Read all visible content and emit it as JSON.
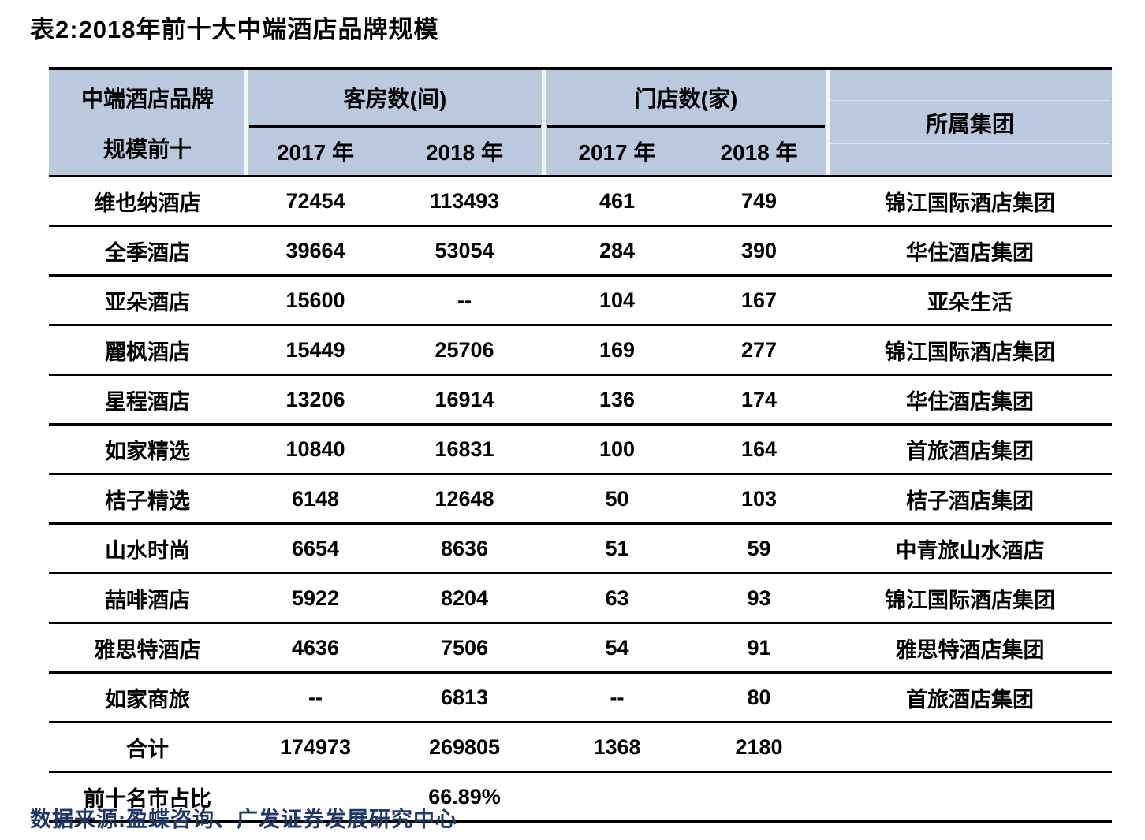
{
  "title": "表2:2018年前十大中端酒店品牌规模",
  "header": {
    "brand_line1": "中端酒店品牌",
    "brand_line2": "规模前十",
    "rooms_group": "客房数(间)",
    "stores_group": "门店数(家)",
    "rooms_2017": "2017 年",
    "rooms_2018": "2018 年",
    "stores_2017": "2017 年",
    "stores_2018": "2018 年",
    "group_col": "所属集团"
  },
  "rows": [
    {
      "brand": "维也纳酒店",
      "rooms_2017": "72454",
      "rooms_2018": "113493",
      "stores_2017": "461",
      "stores_2018": "749",
      "group": "锦江国际酒店集团"
    },
    {
      "brand": "全季酒店",
      "rooms_2017": "39664",
      "rooms_2018": "53054",
      "stores_2017": "284",
      "stores_2018": "390",
      "group": "华住酒店集团"
    },
    {
      "brand": "亚朵酒店",
      "rooms_2017": "15600",
      "rooms_2018": "--",
      "stores_2017": "104",
      "stores_2018": "167",
      "group": "亚朵生活"
    },
    {
      "brand": "麗枫酒店",
      "rooms_2017": "15449",
      "rooms_2018": "25706",
      "stores_2017": "169",
      "stores_2018": "277",
      "group": "锦江国际酒店集团"
    },
    {
      "brand": "星程酒店",
      "rooms_2017": "13206",
      "rooms_2018": "16914",
      "stores_2017": "136",
      "stores_2018": "174",
      "group": "华住酒店集团"
    },
    {
      "brand": "如家精选",
      "rooms_2017": "10840",
      "rooms_2018": "16831",
      "stores_2017": "100",
      "stores_2018": "164",
      "group": "首旅酒店集团"
    },
    {
      "brand": "桔子精选",
      "rooms_2017": "6148",
      "rooms_2018": "12648",
      "stores_2017": "50",
      "stores_2018": "103",
      "group": "桔子酒店集团"
    },
    {
      "brand": "山水时尚",
      "rooms_2017": "6654",
      "rooms_2018": "8636",
      "stores_2017": "51",
      "stores_2018": "59",
      "group": "中青旅山水酒店"
    },
    {
      "brand": "喆啡酒店",
      "rooms_2017": "5922",
      "rooms_2018": "8204",
      "stores_2017": "63",
      "stores_2018": "93",
      "group": "锦江国际酒店集团"
    },
    {
      "brand": "雅思特酒店",
      "rooms_2017": "4636",
      "rooms_2018": "7506",
      "stores_2017": "54",
      "stores_2018": "91",
      "group": "雅思特酒店集团"
    },
    {
      "brand": "如家商旅",
      "rooms_2017": "--",
      "rooms_2018": "6813",
      "stores_2017": "--",
      "stores_2018": "80",
      "group": "首旅酒店集团"
    }
  ],
  "total_row": {
    "brand": "合计",
    "rooms_2017": "174973",
    "rooms_2018": "269805",
    "stores_2017": "1368",
    "stores_2018": "2180",
    "group": ""
  },
  "share_row": {
    "brand": "前十名市占比",
    "rooms_2017": "",
    "rooms_2018": "66.89%",
    "stores_2017": "",
    "stores_2018": "",
    "group": ""
  },
  "source": "数据来源:盈蝶咨询、广发证券发展研究中心",
  "colors": {
    "header_bg": "#bac9de",
    "border_line": "#000000",
    "source_text": "#1f3864"
  }
}
